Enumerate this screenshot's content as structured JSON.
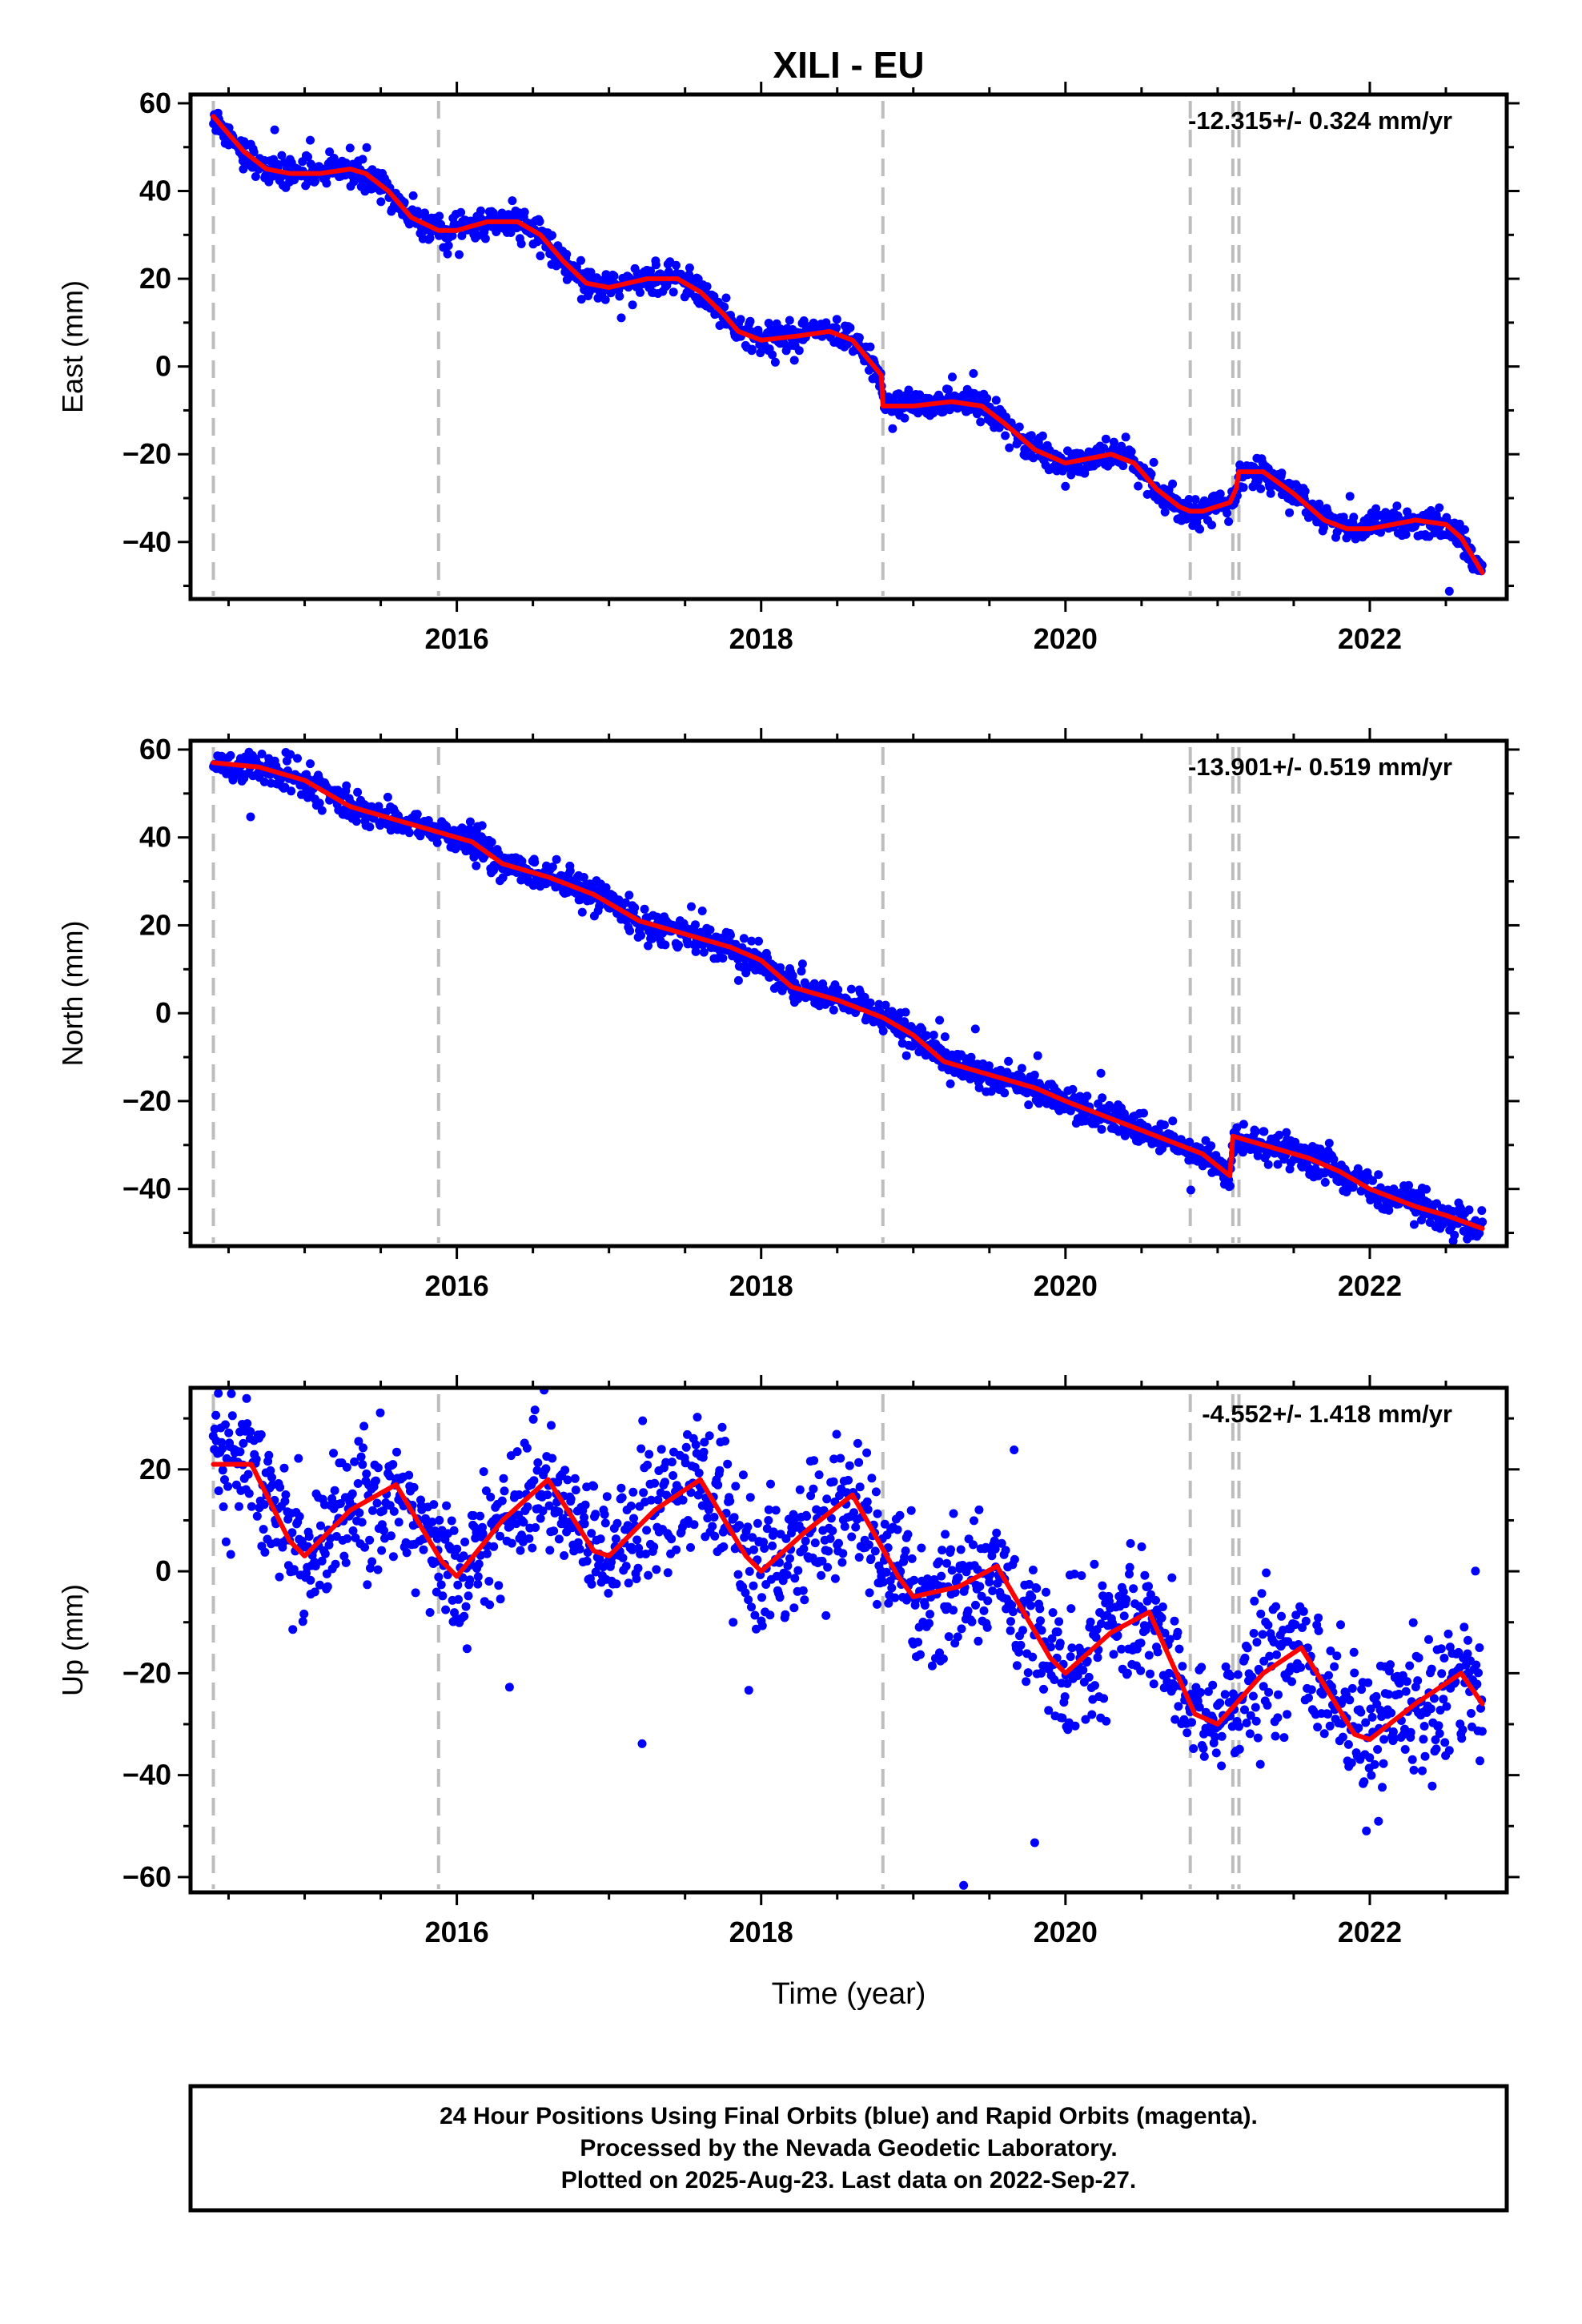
{
  "title": "XILI - EU",
  "chart_data": [
    {
      "type": "scatter",
      "ylabel": "East (mm)",
      "rate_text": "-12.315+/- 0.324 mm/yr",
      "xlim": [
        2014.25,
        2022.9
      ],
      "ylim": [
        -53,
        62
      ],
      "xticks": [
        2016,
        2018,
        2020,
        2022
      ],
      "yticks": [
        -40,
        -20,
        0,
        20,
        40,
        60
      ],
      "steps": [
        2014.4,
        2015.88,
        2018.8,
        2020.82,
        2021.1,
        2021.14
      ],
      "series": [
        {
          "role": "observed",
          "color": "#0000ff",
          "scatter": 1.6,
          "x": [
            2014.4,
            2014.5,
            2014.6,
            2014.75,
            2014.9,
            2015.1,
            2015.3,
            2015.4,
            2015.55,
            2015.7,
            2015.88,
            2016.0,
            2016.2,
            2016.4,
            2016.55,
            2016.7,
            2016.85,
            2017.0,
            2017.25,
            2017.45,
            2017.6,
            2017.75,
            2017.85,
            2018.0,
            2018.25,
            2018.45,
            2018.6,
            2018.79,
            2018.8,
            2019.0,
            2019.25,
            2019.45,
            2019.6,
            2019.8,
            2020.0,
            2020.3,
            2020.45,
            2020.6,
            2020.75,
            2020.82,
            2020.9,
            2021.08,
            2021.12,
            2021.14,
            2021.3,
            2021.5,
            2021.7,
            2021.85,
            2022.0,
            2022.3,
            2022.5,
            2022.6,
            2022.74
          ],
          "y": [
            57,
            53,
            49,
            45,
            44,
            44,
            45,
            44,
            40,
            34,
            31,
            31,
            33,
            33,
            30,
            24,
            19,
            18,
            20,
            20,
            17,
            12,
            8,
            6,
            7,
            8,
            6,
            -2,
            -9,
            -9,
            -8,
            -9,
            -13,
            -19,
            -22,
            -20,
            -22,
            -28,
            -32,
            -33,
            -33,
            -31,
            -28,
            -24,
            -24,
            -29,
            -35,
            -37,
            -37,
            -35,
            -36,
            -39,
            -47
          ]
        },
        {
          "role": "fit",
          "color": "#ff0000",
          "x": [
            2014.4,
            2014.5,
            2014.6,
            2014.75,
            2014.9,
            2015.1,
            2015.3,
            2015.4,
            2015.55,
            2015.7,
            2015.88,
            2016.0,
            2016.2,
            2016.4,
            2016.55,
            2016.7,
            2016.85,
            2017.0,
            2017.25,
            2017.45,
            2017.6,
            2017.75,
            2017.85,
            2018.0,
            2018.25,
            2018.45,
            2018.6,
            2018.79,
            2018.8,
            2019.0,
            2019.25,
            2019.45,
            2019.6,
            2019.8,
            2020.0,
            2020.3,
            2020.45,
            2020.6,
            2020.75,
            2020.82,
            2020.9,
            2021.08,
            2021.12,
            2021.14,
            2021.3,
            2021.5,
            2021.7,
            2021.85,
            2022.0,
            2022.3,
            2022.5,
            2022.6,
            2022.74
          ],
          "y": [
            57,
            53,
            49,
            45,
            44,
            44,
            45,
            44,
            40,
            34,
            31,
            31,
            33,
            33,
            30,
            24,
            19,
            18,
            20,
            20,
            17,
            12,
            8,
            6,
            7,
            8,
            6,
            -2,
            -9,
            -9,
            -8,
            -9,
            -13,
            -19,
            -22,
            -20,
            -22,
            -28,
            -32,
            -33,
            -33,
            -31,
            -28,
            -24,
            -24,
            -29,
            -35,
            -37,
            -37,
            -35,
            -36,
            -39,
            -47
          ]
        }
      ]
    },
    {
      "type": "scatter",
      "ylabel": "North (mm)",
      "rate_text": "-13.901+/- 0.519 mm/yr",
      "xlim": [
        2014.25,
        2022.9
      ],
      "ylim": [
        -53,
        62
      ],
      "xticks": [
        2016,
        2018,
        2020,
        2022
      ],
      "yticks": [
        -40,
        -20,
        0,
        20,
        40,
        60
      ],
      "steps": [
        2014.4,
        2015.88,
        2018.8,
        2020.82,
        2021.1,
        2021.14
      ],
      "series": [
        {
          "role": "observed",
          "color": "#0000ff",
          "scatter": 1.8,
          "x": [
            2014.4,
            2014.7,
            2015.0,
            2015.3,
            2015.6,
            2015.9,
            2016.1,
            2016.3,
            2016.6,
            2016.9,
            2017.2,
            2017.5,
            2017.8,
            2018.0,
            2018.2,
            2018.5,
            2018.8,
            2019.0,
            2019.2,
            2019.5,
            2019.8,
            2020.0,
            2020.3,
            2020.6,
            2020.9,
            2021.08,
            2021.1,
            2021.3,
            2021.6,
            2021.8,
            2022.0,
            2022.3,
            2022.5,
            2022.74
          ],
          "y": [
            57,
            56,
            53,
            47,
            44,
            41,
            39,
            34,
            31,
            27,
            21,
            18,
            15,
            12,
            6,
            3,
            -1,
            -5,
            -11,
            -14,
            -17,
            -20,
            -24,
            -28,
            -32,
            -37,
            -28,
            -30,
            -33,
            -36,
            -40,
            -44,
            -46,
            -49
          ]
        },
        {
          "role": "fit",
          "color": "#ff0000",
          "x": [
            2014.4,
            2014.7,
            2015.0,
            2015.3,
            2015.6,
            2015.9,
            2016.1,
            2016.3,
            2016.6,
            2016.9,
            2017.2,
            2017.5,
            2017.8,
            2018.0,
            2018.2,
            2018.5,
            2018.8,
            2019.0,
            2019.2,
            2019.5,
            2019.8,
            2020.0,
            2020.3,
            2020.6,
            2020.9,
            2021.08,
            2021.1,
            2021.3,
            2021.6,
            2021.8,
            2022.0,
            2022.3,
            2022.5,
            2022.74
          ],
          "y": [
            57,
            56,
            53,
            47,
            44,
            41,
            39,
            34,
            31,
            27,
            21,
            18,
            15,
            12,
            6,
            3,
            -1,
            -5,
            -11,
            -14,
            -17,
            -20,
            -24,
            -28,
            -32,
            -37,
            -28,
            -30,
            -33,
            -36,
            -40,
            -44,
            -46,
            -49
          ]
        }
      ]
    },
    {
      "type": "scatter",
      "ylabel": "Up (mm)",
      "xlabel": "Time (year)",
      "rate_text": "-4.552+/- 1.418 mm/yr",
      "xlim": [
        2014.25,
        2022.9
      ],
      "ylim": [
        -63,
        36
      ],
      "xticks": [
        2016,
        2018,
        2020,
        2022
      ],
      "yticks": [
        -60,
        -40,
        -20,
        0,
        20
      ],
      "steps": [
        2014.4,
        2015.88,
        2018.8,
        2020.82,
        2021.1,
        2021.14
      ],
      "series": [
        {
          "role": "observed",
          "color": "#0000ff",
          "scatter": 6.5,
          "x": [
            2014.4,
            2014.65,
            2014.9,
            2015.0,
            2015.3,
            2015.6,
            2015.9,
            2016.0,
            2016.3,
            2016.6,
            2016.9,
            2017.0,
            2017.3,
            2017.6,
            2017.9,
            2018.0,
            2018.3,
            2018.6,
            2018.9,
            2019.0,
            2019.3,
            2019.55,
            2019.9,
            2020.0,
            2020.3,
            2020.55,
            2020.85,
            2021.0,
            2021.3,
            2021.55,
            2021.9,
            2022.0,
            2022.3,
            2022.6,
            2022.74
          ],
          "y": [
            21,
            21,
            6,
            3,
            12,
            17,
            2,
            -1,
            10,
            18,
            4,
            3,
            12,
            18,
            3,
            0,
            8,
            15,
            -1,
            -5,
            -3,
            1,
            -17,
            -20,
            -12,
            -8,
            -28,
            -30,
            -20,
            -15,
            -32,
            -33,
            -26,
            -20,
            -26
          ]
        },
        {
          "role": "fit",
          "color": "#ff0000",
          "x": [
            2014.4,
            2014.65,
            2014.9,
            2015.0,
            2015.3,
            2015.6,
            2015.9,
            2016.0,
            2016.3,
            2016.6,
            2016.9,
            2017.0,
            2017.3,
            2017.6,
            2017.9,
            2018.0,
            2018.3,
            2018.6,
            2018.9,
            2019.0,
            2019.3,
            2019.55,
            2019.9,
            2020.0,
            2020.3,
            2020.55,
            2020.85,
            2021.0,
            2021.3,
            2021.55,
            2021.9,
            2022.0,
            2022.3,
            2022.6,
            2022.74
          ],
          "y": [
            21,
            21,
            6,
            3,
            12,
            17,
            2,
            -1,
            10,
            18,
            4,
            3,
            12,
            18,
            3,
            0,
            8,
            15,
            -1,
            -5,
            -3,
            1,
            -17,
            -20,
            -12,
            -8,
            -28,
            -30,
            -20,
            -15,
            -32,
            -33,
            -26,
            -20,
            -26
          ]
        }
      ]
    }
  ],
  "footer": {
    "line1": "24 Hour Positions Using Final Orbits (blue) and Rapid Orbits (magenta).",
    "line2": "Processed by the Nevada Geodetic Laboratory.",
    "line3": "Plotted on 2025-Aug-23. Last data on 2022-Sep-27."
  }
}
